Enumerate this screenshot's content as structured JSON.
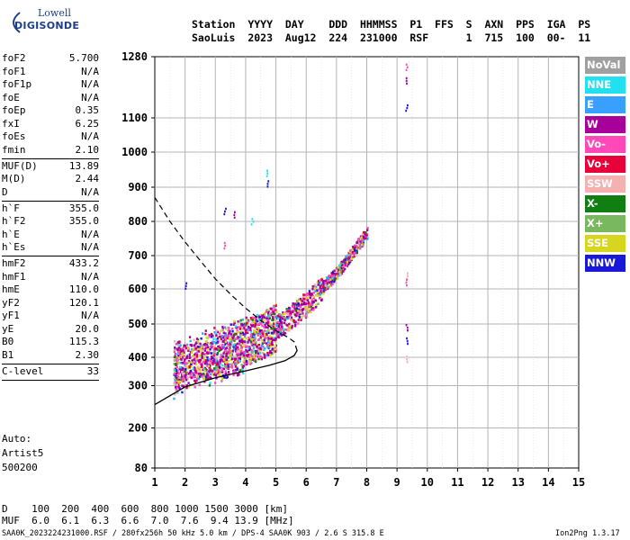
{
  "logo": {
    "line1": "Lowell",
    "line2": "DIGISONDE"
  },
  "header": {
    "labels": [
      "Station",
      "YYYY",
      "DAY",
      "DDD",
      "HHMMSS",
      "P1",
      "FFS",
      "S",
      "AXN",
      "PPS",
      "IGA",
      "PS"
    ],
    "values": [
      "SaoLuis",
      "2023",
      "Aug12",
      "224",
      "231000",
      "RSF",
      "",
      "1",
      "715",
      "100",
      "00-",
      "11"
    ]
  },
  "params": [
    {
      "name": "foF2",
      "value": "5.700"
    },
    {
      "name": "foF1",
      "value": "N/A"
    },
    {
      "name": "foF1p",
      "value": "N/A"
    },
    {
      "name": "foE",
      "value": "N/A"
    },
    {
      "name": "foEp",
      "value": "0.35"
    },
    {
      "name": "fxI",
      "value": "6.25"
    },
    {
      "name": "foEs",
      "value": "N/A"
    },
    {
      "name": "fmin",
      "value": "2.10",
      "sep": true
    },
    {
      "name": "MUF(D)",
      "value": "13.89"
    },
    {
      "name": "M(D)",
      "value": "2.44"
    },
    {
      "name": "D",
      "value": "N/A",
      "sep": true
    },
    {
      "name": "h`F",
      "value": "355.0"
    },
    {
      "name": "h`F2",
      "value": "355.0"
    },
    {
      "name": "h`E",
      "value": "N/A"
    },
    {
      "name": "h`Es",
      "value": "N/A",
      "sep": true
    },
    {
      "name": "hmF2",
      "value": "433.2"
    },
    {
      "name": "hmF1",
      "value": "N/A"
    },
    {
      "name": "hmE",
      "value": "110.0"
    },
    {
      "name": "yF2",
      "value": "120.1"
    },
    {
      "name": "yF1",
      "value": "N/A"
    },
    {
      "name": "yE",
      "value": "20.0"
    },
    {
      "name": "B0",
      "value": "115.3"
    },
    {
      "name": "B1",
      "value": "2.30",
      "sep": true
    },
    {
      "name": "C-level",
      "value": "33",
      "sep": true
    }
  ],
  "autoscale": [
    "Auto:",
    "Artist5",
    "500200"
  ],
  "legend": [
    {
      "label": "NoVal",
      "color": "#a0a0a0"
    },
    {
      "label": "NNE",
      "color": "#22e0f0"
    },
    {
      "label": "E",
      "color": "#3aa0ff"
    },
    {
      "label": "W",
      "color": "#a8009a"
    },
    {
      "label": "Vo-",
      "color": "#ff49b8"
    },
    {
      "label": "Vo+",
      "color": "#e8003a"
    },
    {
      "label": "SSW",
      "color": "#f5b0b0"
    },
    {
      "label": "X-",
      "color": "#107e10"
    },
    {
      "label": "X+",
      "color": "#7ab860"
    },
    {
      "label": "SSE",
      "color": "#d6d61e"
    },
    {
      "label": "NNW",
      "color": "#1818d6"
    }
  ],
  "bottom": {
    "d_label": "D",
    "d_values": [
      "100",
      "200",
      "400",
      "600",
      "800",
      "1000",
      "1500",
      "3000"
    ],
    "d_unit": "[km]",
    "muf_label": "MUF",
    "muf_values": [
      "6.0",
      "6.1",
      "6.3",
      "6.6",
      "7.0",
      "7.6",
      "9.4",
      "13.9"
    ],
    "muf_unit": "[MHz]"
  },
  "footer": {
    "left": "SAA0K_2023224231000.RSF / 280fx256h 50 kHz 5.0 km / DPS-4 SAA0K 903 / 2.6 S 315.8 E",
    "right": "Ion2Png 1.3.17"
  },
  "chart_data": {
    "type": "scatter",
    "xlim": [
      1,
      15
    ],
    "ylim": [
      80,
      1280
    ],
    "x_ticks": [
      "1",
      "2",
      "3",
      "4",
      "5",
      "6",
      "7",
      "8",
      "9",
      "10",
      "11",
      "12",
      "13",
      "14",
      "15"
    ],
    "y_ticks": [
      "80",
      "200",
      "300",
      "400",
      "500",
      "600",
      "700",
      "800",
      "900",
      "1000",
      "1100",
      "1280"
    ],
    "y_tick_values": [
      80,
      200,
      300,
      400,
      500,
      600,
      700,
      800,
      900,
      1000,
      1100,
      1280
    ],
    "grid": true,
    "ionogram_cloud": {
      "x_range": [
        1.6,
        8.0
      ],
      "virtual_height_trace": [
        [
          1.7,
          370
        ],
        [
          2.5,
          395
        ],
        [
          3.5,
          425
        ],
        [
          4.5,
          465
        ],
        [
          5.0,
          490
        ],
        [
          5.5,
          525
        ],
        [
          6.0,
          560
        ],
        [
          6.5,
          605
        ],
        [
          7.0,
          650
        ],
        [
          7.5,
          710
        ],
        [
          8.0,
          770
        ]
      ]
    },
    "extra_echoes": [
      {
        "x": 4.7,
        "y": 950
      },
      {
        "x": 4.7,
        "y": 920
      },
      {
        "x": 3.3,
        "y": 840
      },
      {
        "x": 3.6,
        "y": 830
      },
      {
        "x": 3.3,
        "y": 740
      },
      {
        "x": 4.2,
        "y": 810
      },
      {
        "x": 2.0,
        "y": 620
      },
      {
        "x": 9.3,
        "y": 1260
      },
      {
        "x": 9.3,
        "y": 1220
      },
      {
        "x": 9.3,
        "y": 1140
      },
      {
        "x": 9.3,
        "y": 650
      },
      {
        "x": 9.3,
        "y": 630
      },
      {
        "x": 9.3,
        "y": 500
      },
      {
        "x": 9.3,
        "y": 460
      },
      {
        "x": 9.3,
        "y": 405
      }
    ],
    "model_true_height_solid": [
      [
        1,
        255
      ],
      [
        2,
        297
      ],
      [
        3,
        328
      ],
      [
        4,
        352
      ],
      [
        4.8,
        372
      ],
      [
        5.3,
        388
      ],
      [
        5.6,
        405
      ],
      [
        5.7,
        420
      ],
      [
        5.65,
        435
      ]
    ],
    "model_virtual_height_dashed": [
      [
        1,
        870
      ],
      [
        1.5,
        800
      ],
      [
        2,
        740
      ],
      [
        2.5,
        685
      ],
      [
        3,
        630
      ],
      [
        3.5,
        585
      ],
      [
        4,
        545
      ],
      [
        4.5,
        510
      ],
      [
        5,
        480
      ],
      [
        5.4,
        460
      ],
      [
        5.7,
        440
      ]
    ],
    "series": [
      {
        "name": "NoVal"
      },
      {
        "name": "NNE"
      },
      {
        "name": "E"
      },
      {
        "name": "W"
      },
      {
        "name": "Vo-"
      },
      {
        "name": "Vo+"
      },
      {
        "name": "SSW"
      },
      {
        "name": "X-"
      },
      {
        "name": "X+"
      },
      {
        "name": "SSE"
      },
      {
        "name": "NNW"
      }
    ]
  }
}
